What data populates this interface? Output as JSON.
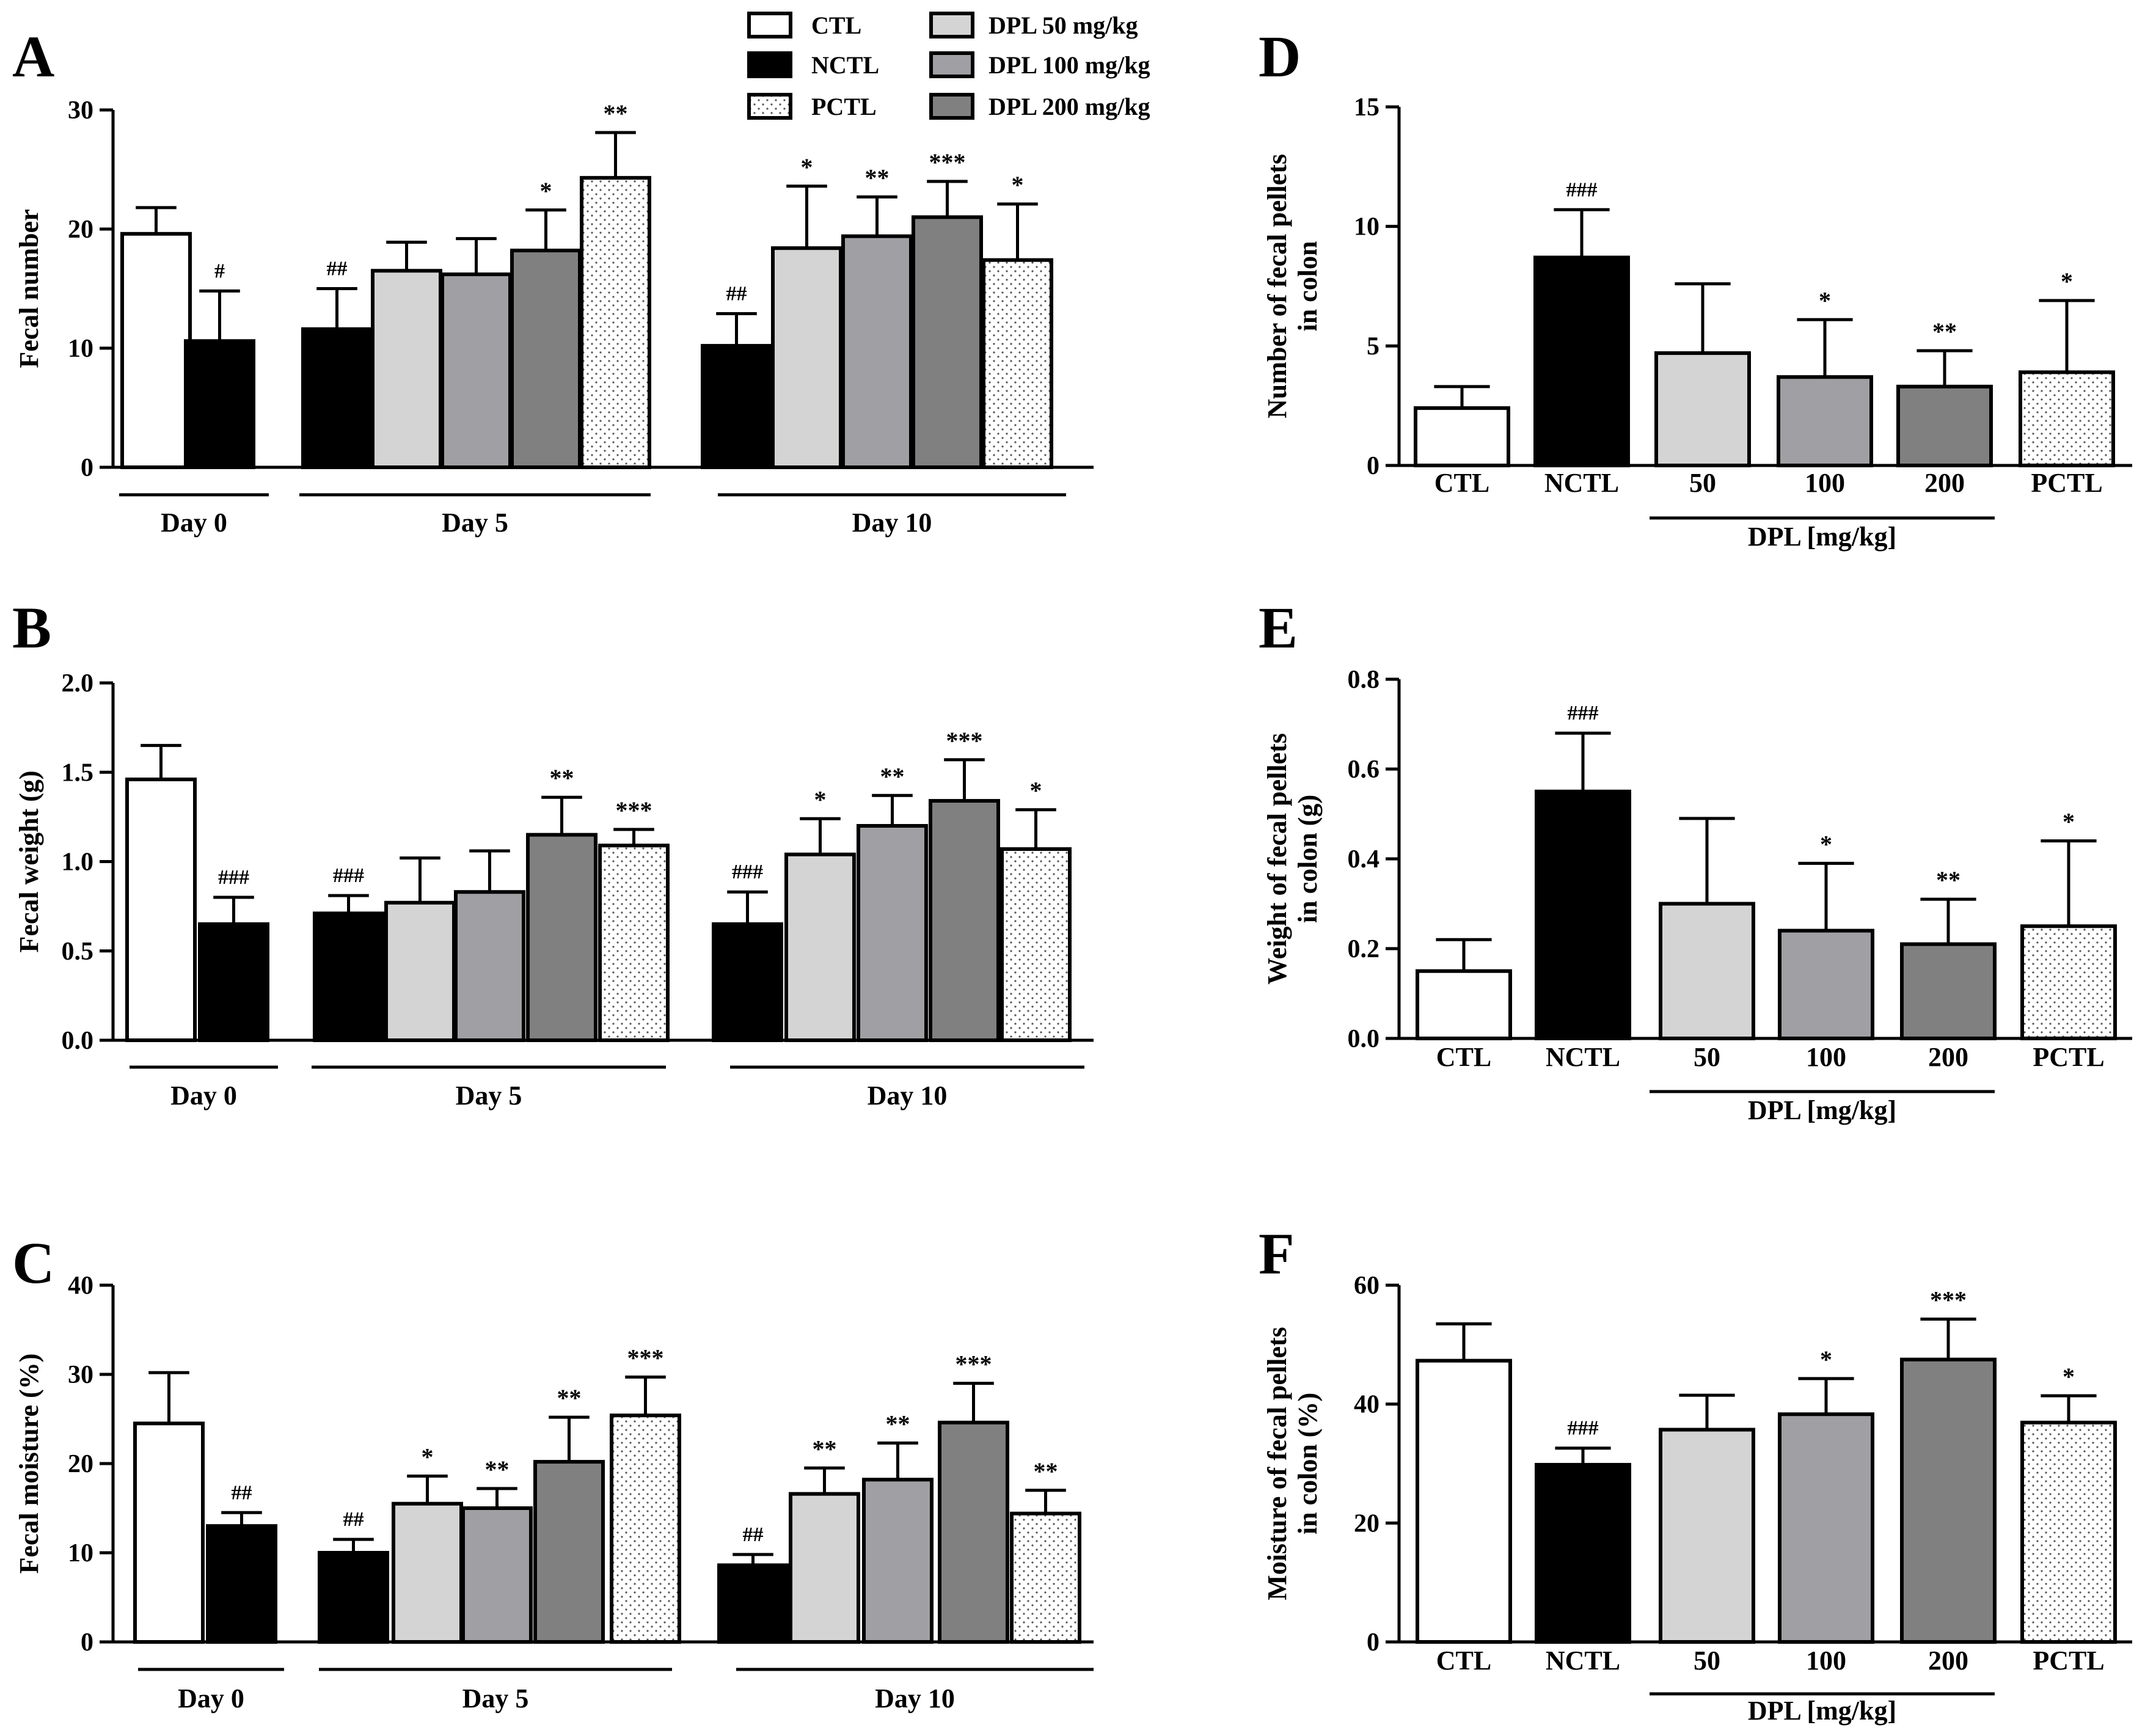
{
  "legend": {
    "items": [
      {
        "label": "CTL",
        "group": "CTL"
      },
      {
        "label": "NCTL",
        "group": "NCTL"
      },
      {
        "label": "PCTL",
        "group": "PCTL"
      },
      {
        "label": "DPL 50 mg/kg",
        "group": "DPL50"
      },
      {
        "label": "DPL 100 mg/kg",
        "group": "DPL100"
      },
      {
        "label": "DPL 200 mg/kg",
        "group": "DPL200"
      }
    ]
  },
  "styles": {
    "CTL": {
      "fill": "#ffffff",
      "pattern": "none"
    },
    "NCTL": {
      "fill": "#000000",
      "pattern": "none"
    },
    "DPL50": {
      "fill": "#d4d4d4",
      "pattern": "none"
    },
    "DPL100": {
      "fill": "#a0a0a4",
      "pattern": "none"
    },
    "DPL200": {
      "fill": "#808080",
      "pattern": "none"
    },
    "PCTL": {
      "fill": "#ffffff",
      "pattern": "dots"
    }
  },
  "chart_data": [
    {
      "panel": "A",
      "type": "bar",
      "ylabel": "Fecal number",
      "ylim": [
        0,
        30
      ],
      "yticks": [
        0,
        10,
        20,
        30
      ],
      "tick_labels": [
        "0",
        "10",
        "20",
        "30"
      ],
      "groups": [
        {
          "label": "Day 0",
          "bars": [
            {
              "series": "CTL",
              "value": 19.6,
              "err": 2.2,
              "sig": ""
            },
            {
              "series": "NCTL",
              "value": 10.6,
              "err": 4.2,
              "sig": "#"
            }
          ]
        },
        {
          "label": "Day 5",
          "bars": [
            {
              "series": "NCTL",
              "value": 11.6,
              "err": 3.4,
              "sig": "##"
            },
            {
              "series": "DPL50",
              "value": 16.5,
              "err": 2.4,
              "sig": ""
            },
            {
              "series": "DPL100",
              "value": 16.2,
              "err": 3.0,
              "sig": ""
            },
            {
              "series": "DPL200",
              "value": 18.2,
              "err": 3.4,
              "sig": "*"
            },
            {
              "series": "PCTL",
              "value": 24.3,
              "err": 3.8,
              "sig": "**"
            }
          ]
        },
        {
          "label": "Day 10",
          "bars": [
            {
              "series": "NCTL",
              "value": 10.2,
              "err": 2.7,
              "sig": "##"
            },
            {
              "series": "DPL50",
              "value": 18.4,
              "err": 5.2,
              "sig": "*"
            },
            {
              "series": "DPL100",
              "value": 19.4,
              "err": 3.3,
              "sig": "**"
            },
            {
              "series": "DPL200",
              "value": 21.0,
              "err": 3.0,
              "sig": "***"
            },
            {
              "series": "PCTL",
              "value": 17.4,
              "err": 4.7,
              "sig": "*"
            }
          ]
        }
      ]
    },
    {
      "panel": "B",
      "type": "bar",
      "ylabel": "Fecal weight (g)",
      "ylim": [
        0,
        2.0
      ],
      "yticks": [
        0,
        0.5,
        1.0,
        1.5,
        2.0
      ],
      "tick_labels": [
        "0.0",
        "0.5",
        "1.0",
        "1.5",
        "2.0"
      ],
      "groups": [
        {
          "label": "Day 0",
          "bars": [
            {
              "series": "CTL",
              "value": 1.46,
              "err": 0.19,
              "sig": ""
            },
            {
              "series": "NCTL",
              "value": 0.65,
              "err": 0.15,
              "sig": "###"
            }
          ]
        },
        {
          "label": "Day 5",
          "bars": [
            {
              "series": "NCTL",
              "value": 0.71,
              "err": 0.1,
              "sig": "###"
            },
            {
              "series": "DPL50",
              "value": 0.77,
              "err": 0.25,
              "sig": ""
            },
            {
              "series": "DPL100",
              "value": 0.83,
              "err": 0.23,
              "sig": ""
            },
            {
              "series": "DPL200",
              "value": 1.15,
              "err": 0.21,
              "sig": "**"
            },
            {
              "series": "PCTL",
              "value": 1.09,
              "err": 0.09,
              "sig": "***"
            }
          ]
        },
        {
          "label": "Day 10",
          "bars": [
            {
              "series": "NCTL",
              "value": 0.65,
              "err": 0.18,
              "sig": "###"
            },
            {
              "series": "DPL50",
              "value": 1.04,
              "err": 0.2,
              "sig": "*"
            },
            {
              "series": "DPL100",
              "value": 1.2,
              "err": 0.17,
              "sig": "**"
            },
            {
              "series": "DPL200",
              "value": 1.34,
              "err": 0.23,
              "sig": "***"
            },
            {
              "series": "PCTL",
              "value": 1.07,
              "err": 0.22,
              "sig": "*"
            }
          ]
        }
      ]
    },
    {
      "panel": "C",
      "type": "bar",
      "ylabel": "Fecal moisture (%)",
      "ylim": [
        0,
        40
      ],
      "yticks": [
        0,
        10,
        20,
        30,
        40
      ],
      "tick_labels": [
        "0",
        "10",
        "20",
        "30",
        "40"
      ],
      "groups": [
        {
          "label": "Day 0",
          "bars": [
            {
              "series": "CTL",
              "value": 24.5,
              "err": 5.7,
              "sig": ""
            },
            {
              "series": "NCTL",
              "value": 13.0,
              "err": 1.5,
              "sig": "##"
            }
          ]
        },
        {
          "label": "Day 5",
          "bars": [
            {
              "series": "NCTL",
              "value": 10.0,
              "err": 1.5,
              "sig": "##"
            },
            {
              "series": "DPL50",
              "value": 15.5,
              "err": 3.1,
              "sig": "*"
            },
            {
              "series": "DPL100",
              "value": 15.0,
              "err": 2.2,
              "sig": "**"
            },
            {
              "series": "DPL200",
              "value": 20.2,
              "err": 5.0,
              "sig": "**"
            },
            {
              "series": "PCTL",
              "value": 25.4,
              "err": 4.3,
              "sig": "***"
            }
          ]
        },
        {
          "label": "Day 10",
          "bars": [
            {
              "series": "NCTL",
              "value": 8.6,
              "err": 1.2,
              "sig": "##"
            },
            {
              "series": "DPL50",
              "value": 16.6,
              "err": 2.9,
              "sig": "**"
            },
            {
              "series": "DPL100",
              "value": 18.2,
              "err": 4.1,
              "sig": "**"
            },
            {
              "series": "DPL200",
              "value": 24.6,
              "err": 4.4,
              "sig": "***"
            },
            {
              "series": "PCTL",
              "value": 14.4,
              "err": 2.6,
              "sig": "**"
            }
          ]
        }
      ]
    },
    {
      "panel": "D",
      "type": "bar",
      "ylabel": [
        "Number of fecal pellets",
        "in colon"
      ],
      "ylim": [
        0,
        15
      ],
      "yticks": [
        0,
        5,
        10,
        15
      ],
      "tick_labels": [
        "0",
        "5",
        "10",
        "15"
      ],
      "xgroup_label": "DPL [mg/kg]",
      "bars": [
        {
          "label": "CTL",
          "series": "CTL",
          "value": 2.4,
          "err": 0.9,
          "sig": ""
        },
        {
          "label": "NCTL",
          "series": "NCTL",
          "value": 8.7,
          "err": 2.0,
          "sig": "###"
        },
        {
          "label": "50",
          "series": "DPL50",
          "value": 4.7,
          "err": 2.9,
          "sig": ""
        },
        {
          "label": "100",
          "series": "DPL100",
          "value": 3.7,
          "err": 2.4,
          "sig": "*"
        },
        {
          "label": "200",
          "series": "DPL200",
          "value": 3.3,
          "err": 1.5,
          "sig": "**"
        },
        {
          "label": "PCTL",
          "series": "PCTL",
          "value": 3.9,
          "err": 3.0,
          "sig": "*"
        }
      ]
    },
    {
      "panel": "E",
      "type": "bar",
      "ylabel": [
        "Weight of fecal pellets",
        "in colon (g)"
      ],
      "ylim": [
        0,
        0.8
      ],
      "yticks": [
        0,
        0.2,
        0.4,
        0.6,
        0.8
      ],
      "tick_labels": [
        "0.0",
        "0.2",
        "0.4",
        "0.6",
        "0.8"
      ],
      "xgroup_label": "DPL [mg/kg]",
      "bars": [
        {
          "label": "CTL",
          "series": "CTL",
          "value": 0.15,
          "err": 0.07,
          "sig": ""
        },
        {
          "label": "NCTL",
          "series": "NCTL",
          "value": 0.55,
          "err": 0.13,
          "sig": "###"
        },
        {
          "label": "50",
          "series": "DPL50",
          "value": 0.3,
          "err": 0.19,
          "sig": ""
        },
        {
          "label": "100",
          "series": "DPL100",
          "value": 0.24,
          "err": 0.15,
          "sig": "*"
        },
        {
          "label": "200",
          "series": "DPL200",
          "value": 0.21,
          "err": 0.1,
          "sig": "**"
        },
        {
          "label": "PCTL",
          "series": "PCTL",
          "value": 0.25,
          "err": 0.19,
          "sig": "*"
        }
      ]
    },
    {
      "panel": "F",
      "type": "bar",
      "ylabel": [
        "Moisture of fecal pellets",
        "in colon (%)"
      ],
      "ylim": [
        0,
        60
      ],
      "yticks": [
        0,
        20,
        40,
        60
      ],
      "tick_labels": [
        "0",
        "20",
        "40",
        "60"
      ],
      "xgroup_label": "DPL [mg/kg]",
      "bars": [
        {
          "label": "CTL",
          "series": "CTL",
          "value": 47.3,
          "err": 6.2,
          "sig": ""
        },
        {
          "label": "NCTL",
          "series": "NCTL",
          "value": 29.8,
          "err": 2.8,
          "sig": "###"
        },
        {
          "label": "50",
          "series": "DPL50",
          "value": 35.7,
          "err": 5.8,
          "sig": ""
        },
        {
          "label": "100",
          "series": "DPL100",
          "value": 38.3,
          "err": 6.0,
          "sig": "*"
        },
        {
          "label": "200",
          "series": "DPL200",
          "value": 47.5,
          "err": 6.8,
          "sig": "***"
        },
        {
          "label": "PCTL",
          "series": "PCTL",
          "value": 36.9,
          "err": 4.5,
          "sig": "*"
        }
      ]
    }
  ]
}
